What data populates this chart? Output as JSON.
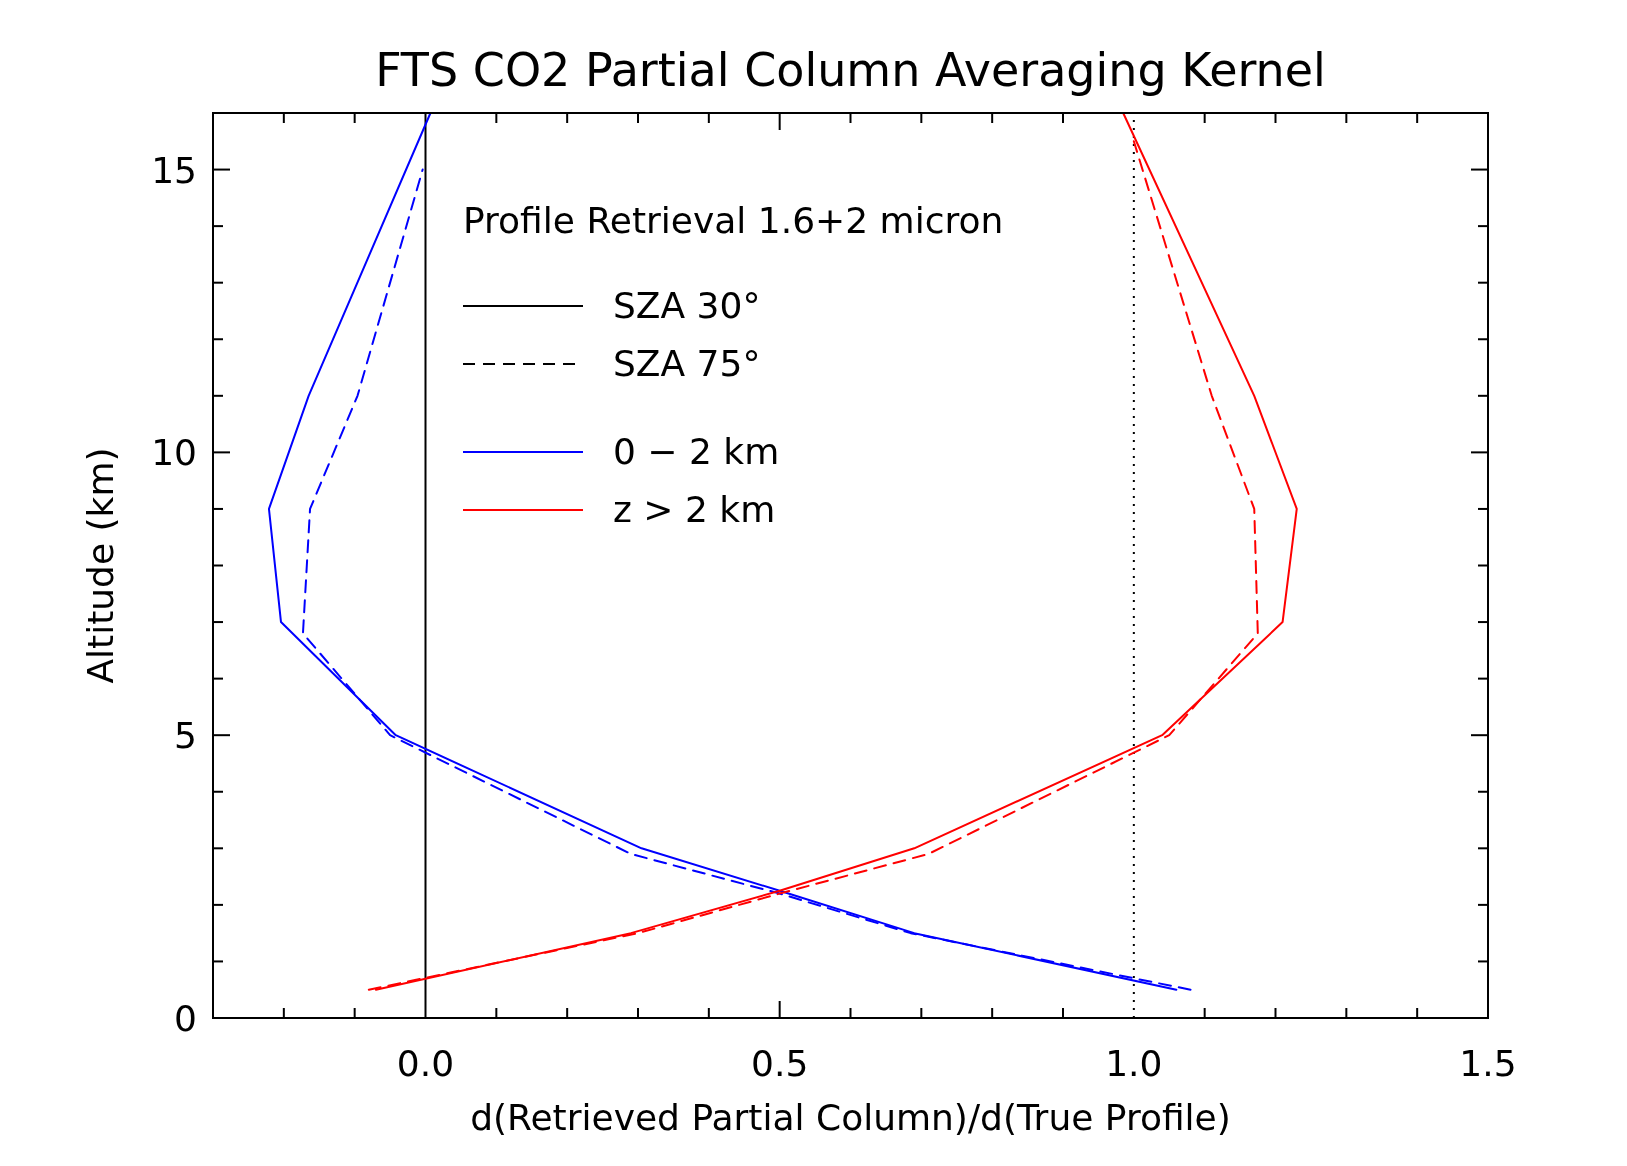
{
  "chart_data": {
    "type": "line",
    "title": "FTS CO2 Partial Column Averaging Kernel",
    "xlabel": "d(Retrieved Partial Column)/d(True Profile)",
    "ylabel": "Altitude (km)",
    "legend_title": "Profile Retrieval 1.6+2 micron",
    "legend": "top left",
    "annotations": [
      "SZA 30°",
      "SZA 75°"
    ],
    "xlim": [
      -0.3,
      1.5
    ],
    "ylim": [
      0,
      16
    ],
    "xticks": [
      {
        "value": -0.2,
        "label": null
      },
      {
        "value": -0.1,
        "label": null
      },
      {
        "value": 0,
        "label": "0.0"
      },
      {
        "value": 0.1,
        "label": null
      },
      {
        "value": 0.2,
        "label": null
      },
      {
        "value": 0.3,
        "label": null
      },
      {
        "value": 0.4,
        "label": null
      },
      {
        "value": 0.5,
        "label": "0.5"
      },
      {
        "value": 0.6,
        "label": null
      },
      {
        "value": 0.7,
        "label": null
      },
      {
        "value": 0.8,
        "label": null
      },
      {
        "value": 0.9,
        "label": null
      },
      {
        "value": 1,
        "label": "1.0"
      },
      {
        "value": 1.1,
        "label": null
      },
      {
        "value": 1.2,
        "label": null
      },
      {
        "value": 1.3,
        "label": null
      },
      {
        "value": 1.4,
        "label": null
      },
      {
        "value": 1.5,
        "label": "1.5"
      }
    ],
    "yticks": [
      0,
      {
        "value": 1,
        "label": null
      },
      {
        "value": 2,
        "label": null
      },
      {
        "value": 3,
        "label": null
      },
      {
        "value": 4,
        "label": null
      },
      5,
      {
        "value": 6,
        "label": null
      },
      {
        "value": 7,
        "label": null
      },
      {
        "value": 8,
        "label": null
      },
      {
        "value": 9,
        "label": null
      },
      10,
      {
        "value": 11,
        "label": null
      },
      {
        "value": 12,
        "label": null
      },
      {
        "value": 13,
        "label": null
      },
      {
        "value": 14,
        "label": null
      },
      15
    ],
    "grid": false,
    "marker": "none",
    "ref_lines": [
      {
        "axis": "x",
        "value": 0,
        "color": "#000000",
        "line_style": "solid"
      },
      {
        "axis": "x",
        "value": 1,
        "color": "#000000",
        "line_style": "dotted"
      }
    ],
    "series": [
      {
        "name": "0 − 2 km",
        "color": "#0000ff",
        "line_style": "solid",
        "x": [
          1.06,
          0.69,
          0.5,
          0.305,
          -0.042,
          -0.204,
          -0.221,
          -0.165,
          0.007
        ],
        "values": [
          0.5,
          1.5,
          2.25,
          3,
          5,
          7,
          9,
          11,
          16
        ]
      },
      {
        "color": "#0000ff",
        "line_style": "dashed",
        "x": [
          1.08,
          0.685,
          0.5,
          0.29,
          -0.05,
          -0.173,
          -0.163,
          -0.096,
          -0.004
        ],
        "values": [
          0.5,
          1.5,
          2.2,
          2.9,
          5,
          6.8,
          9,
          11,
          15
        ]
      },
      {
        "name": "z > 2 km",
        "color": "#ff0000",
        "line_style": "solid",
        "x": [
          -0.07,
          0.29,
          0.5,
          0.69,
          1.04,
          1.21,
          1.23,
          1.17,
          0.985
        ],
        "values": [
          0.5,
          1.5,
          2.25,
          3,
          5,
          7,
          9,
          11,
          16
        ]
      },
      {
        "color": "#ff0000",
        "line_style": "dashed",
        "x": [
          -0.08,
          0.3,
          0.5,
          0.71,
          1.05,
          1.175,
          1.17,
          1.11,
          1.0
        ],
        "values": [
          0.5,
          1.5,
          2.2,
          2.9,
          5,
          6.8,
          9,
          11,
          15.5
        ]
      }
    ]
  }
}
